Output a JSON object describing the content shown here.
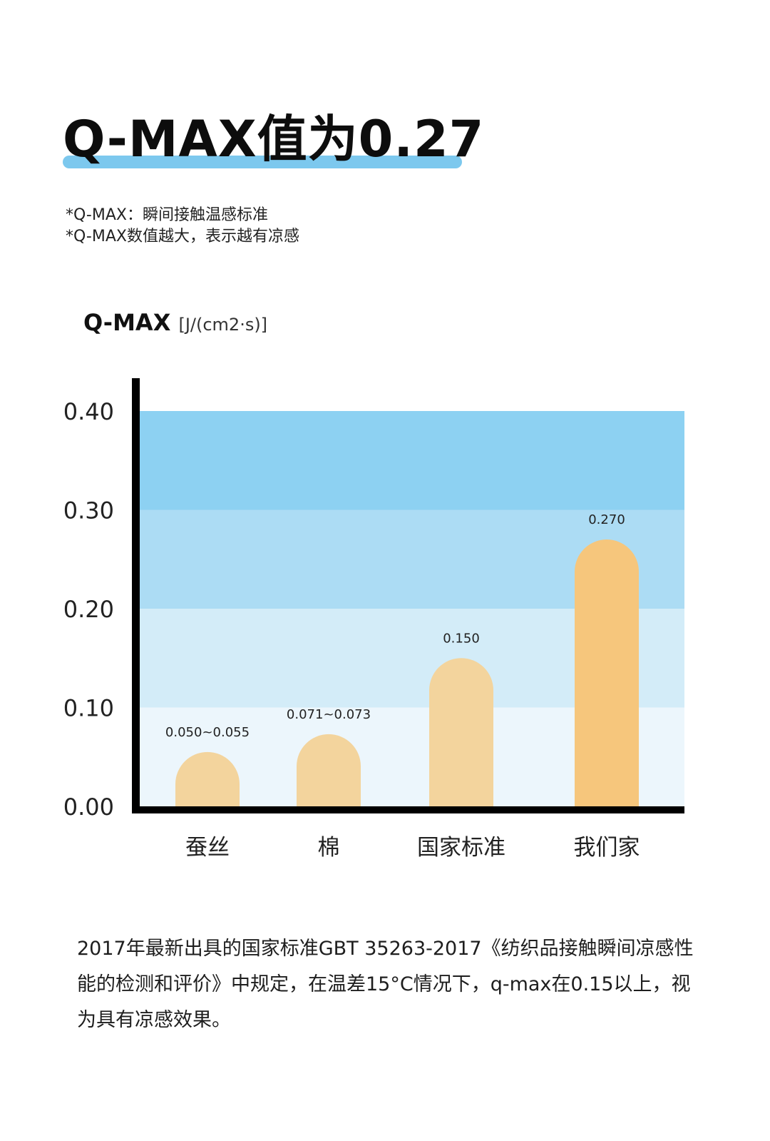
{
  "headline": "Q-MAX值为0.27",
  "notes": [
    "*Q-MAX：瞬间接触温感标准",
    "*Q-MAX数值越大，表示越有凉感"
  ],
  "chart_title": {
    "main": "Q-MAX",
    "unit": "[J/(cm2·s)]"
  },
  "chart_data": {
    "type": "bar",
    "categories": [
      "蚕丝",
      "棉",
      "国家标准",
      "我们家"
    ],
    "values": [
      0.055,
      0.073,
      0.15,
      0.27
    ],
    "value_labels": [
      "0.050~0.055",
      "0.071~0.073",
      "0.150",
      "0.270"
    ],
    "ylim": [
      0,
      0.4
    ],
    "yticks": [
      "0.00",
      "0.10",
      "0.20",
      "0.30",
      "0.40"
    ],
    "title": "",
    "xlabel": "",
    "ylabel": "Q-MAX [J/(cm2·s)]",
    "grid": false,
    "background_bands": [
      {
        "from": 0.0,
        "to": 0.1,
        "color": "#ecf6fc"
      },
      {
        "from": 0.1,
        "to": 0.2,
        "color": "#d3ecf8"
      },
      {
        "from": 0.2,
        "to": 0.3,
        "color": "#acdcf4"
      },
      {
        "from": 0.3,
        "to": 0.4,
        "color": "#8dd1f2"
      }
    ],
    "bar_colors": [
      "#f3d49d",
      "#f3d49d",
      "#f3d49d",
      "#f6c67c"
    ]
  },
  "footer": "2017年最新出具的国家标准GBT 35263-2017《纺织品接触瞬间凉感性能的检测和评价》中规定，在温差15°C情况下，q-max在0.15以上，视为具有凉感效果。"
}
